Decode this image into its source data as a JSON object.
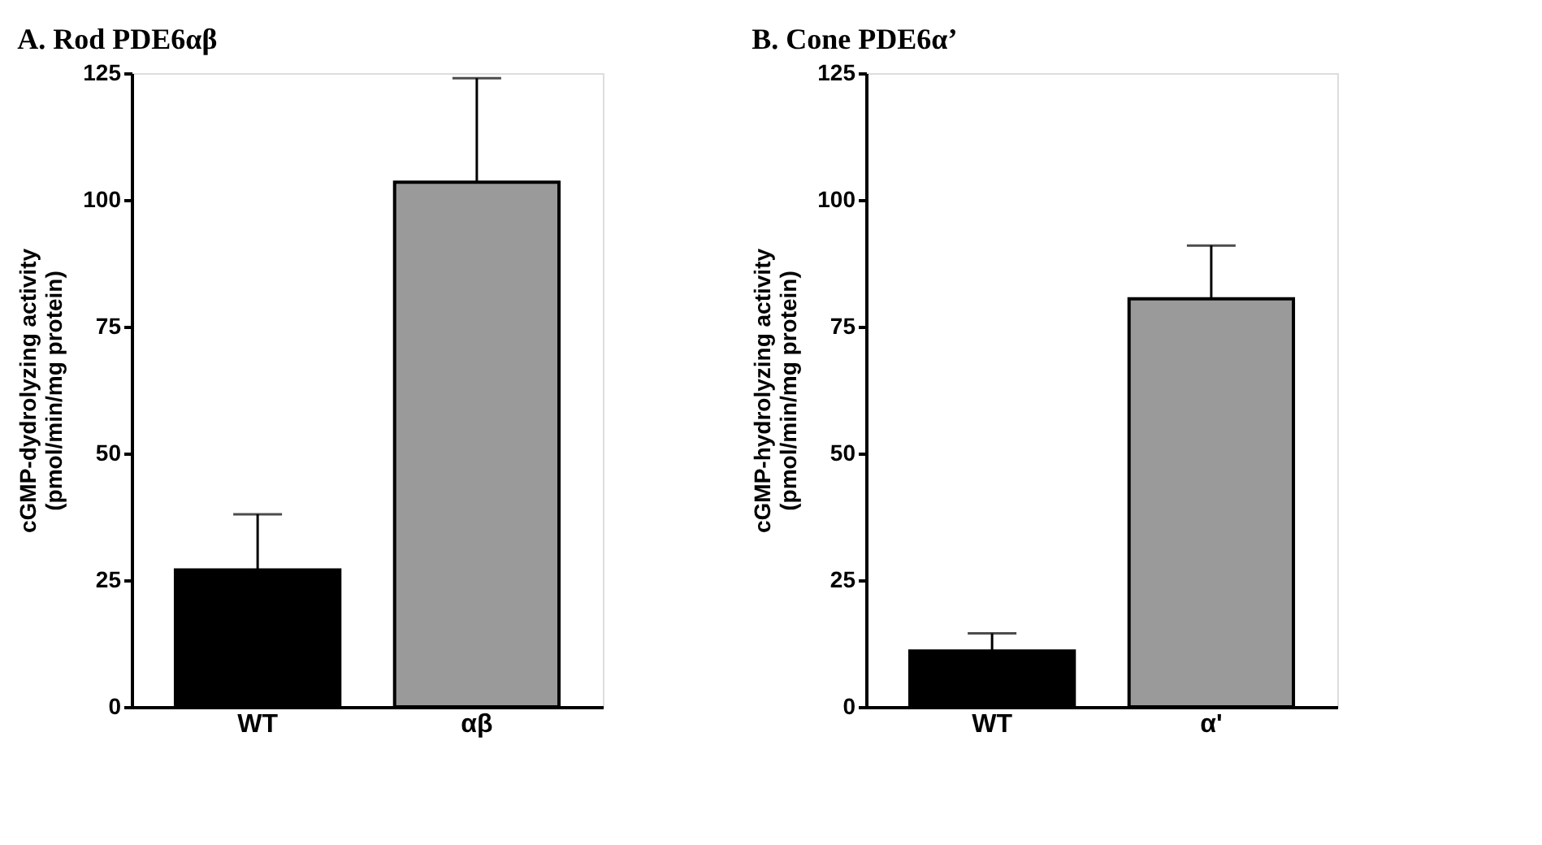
{
  "chart_data": [
    {
      "type": "bar",
      "title": "A. Rod PDE6αβ",
      "ylabel": "cGMP-dydrolyzing activity\n(pmol/min/mg protein)",
      "categories": [
        "WT",
        "αβ"
      ],
      "values": [
        27,
        103.5
      ],
      "errors": [
        11,
        20.5
      ],
      "colors": [
        "#000000",
        "#9a9a9a"
      ],
      "ylim": [
        0,
        125
      ],
      "yticks": [
        0,
        25,
        50,
        75,
        100,
        125
      ],
      "grid": false
    },
    {
      "type": "bar",
      "title": "B. Cone PDE6α’",
      "ylabel": "cGMP-hydrolyzing activity\n(pmol/min/mg protein)",
      "categories": [
        "WT",
        "α'"
      ],
      "values": [
        11,
        80.5
      ],
      "errors": [
        3.5,
        10.5
      ],
      "colors": [
        "#000000",
        "#9a9a9a"
      ],
      "ylim": [
        0,
        125
      ],
      "yticks": [
        0,
        25,
        50,
        75,
        100,
        125
      ],
      "grid": false
    }
  ]
}
